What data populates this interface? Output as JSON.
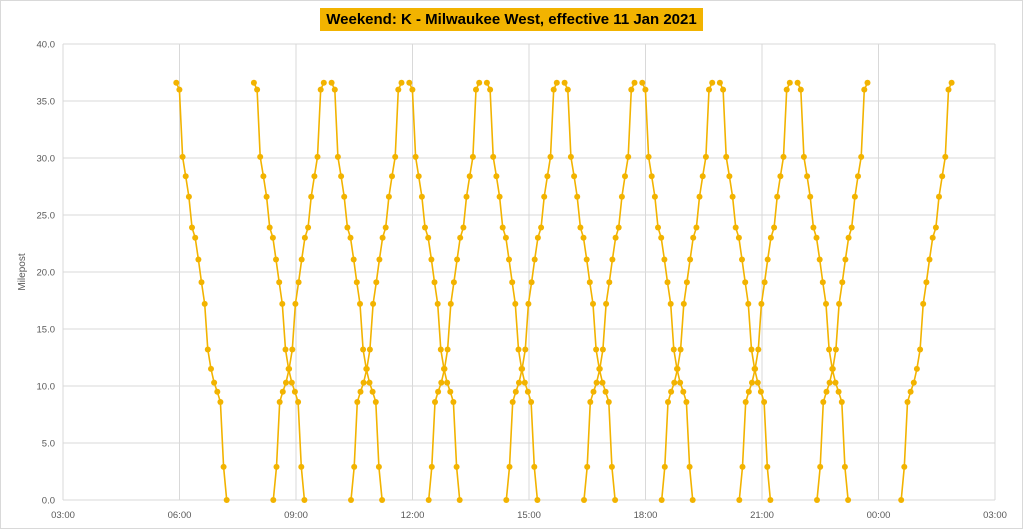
{
  "chart_data": {
    "type": "line",
    "title": "Weekend: K - Milwaukee West, effective 11 Jan 2021",
    "xlabel": "",
    "ylabel": "Milepost",
    "xlim": [
      3,
      27
    ],
    "ylim": [
      0,
      40
    ],
    "x_tick_labels": [
      "03:00",
      "06:00",
      "09:00",
      "12:00",
      "15:00",
      "18:00",
      "21:00",
      "00:00",
      "03:00"
    ],
    "y_tick_labels": [
      "0.0",
      "5.0",
      "10.0",
      "15.0",
      "20.0",
      "25.0",
      "30.0",
      "35.0",
      "40.0"
    ],
    "grid": true,
    "legend": "none",
    "color": "#f2b300",
    "stations_milepost": [
      36.6,
      36.0,
      30.1,
      28.4,
      26.6,
      23.9,
      23.0,
      21.1,
      19.1,
      17.2,
      13.2,
      11.5,
      10.3,
      9.5,
      8.6,
      2.9,
      0.0
    ],
    "inbound_trips_start": [
      "05:55",
      "07:55",
      "09:55",
      "11:55",
      "13:55",
      "15:55",
      "17:55",
      "19:55",
      "21:55"
    ],
    "outbound_trips_start": [
      "08:25",
      "10:25",
      "12:25",
      "14:25",
      "16:25",
      "18:25",
      "20:25",
      "22:25",
      "00:35"
    ],
    "trip_duration_minutes": 78
  }
}
